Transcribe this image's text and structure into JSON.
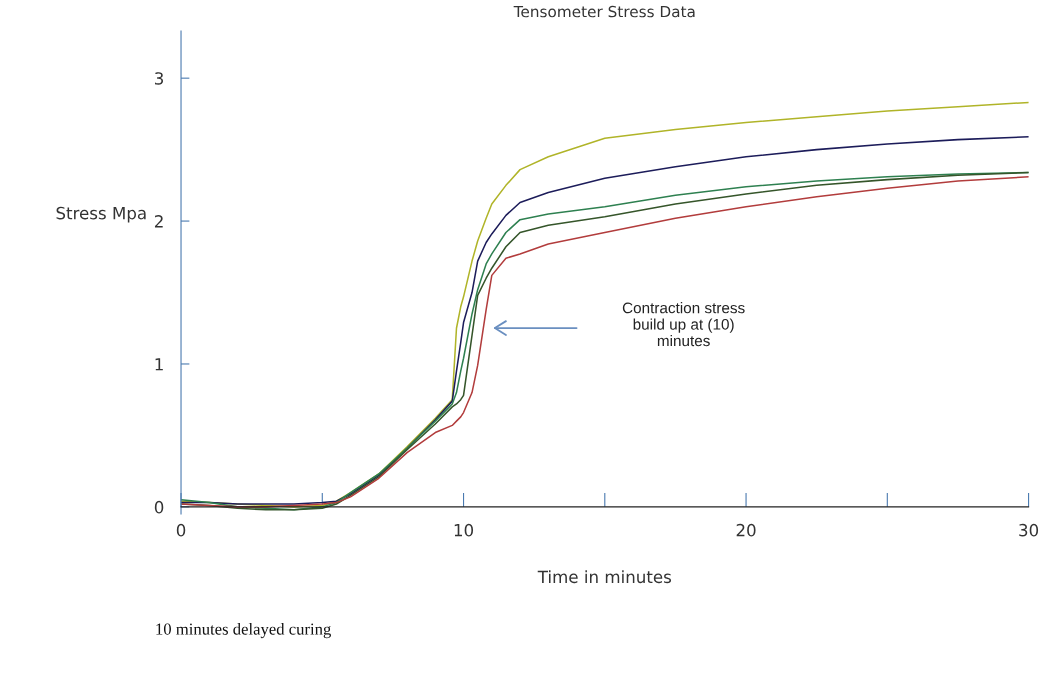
{
  "chart_data": {
    "type": "line",
    "title": "Tensometer Stress Data",
    "xlabel": "Time in minutes",
    "ylabel": "Stress Mpa",
    "x": [
      0,
      1,
      2,
      3,
      4,
      5,
      5.5,
      6,
      7,
      8,
      9,
      9.6,
      9.75,
      9.9,
      10,
      10.3,
      10.5,
      10.8,
      11,
      11.5,
      12,
      13,
      15,
      17.5,
      20,
      22.5,
      25,
      27.5,
      30
    ],
    "series": [
      {
        "color": "#b0b428",
        "values": [
          0.04,
          0.03,
          0.02,
          0.01,
          0.0,
          0.01,
          0.04,
          0.1,
          0.23,
          0.42,
          0.62,
          0.75,
          1.25,
          1.4,
          1.47,
          1.72,
          1.86,
          2.02,
          2.12,
          2.25,
          2.36,
          2.45,
          2.58,
          2.64,
          2.69,
          2.73,
          2.77,
          2.8,
          2.83
        ]
      },
      {
        "color": "#1c1c5a",
        "values": [
          0.03,
          0.03,
          0.02,
          0.02,
          0.02,
          0.03,
          0.04,
          0.09,
          0.22,
          0.41,
          0.61,
          0.74,
          0.95,
          1.15,
          1.29,
          1.5,
          1.72,
          1.85,
          1.91,
          2.04,
          2.13,
          2.2,
          2.3,
          2.38,
          2.45,
          2.5,
          2.54,
          2.57,
          2.59
        ]
      },
      {
        "color": "#2e8050",
        "values": [
          0.05,
          0.03,
          0.0,
          -0.01,
          -0.02,
          0.0,
          0.03,
          0.1,
          0.23,
          0.41,
          0.6,
          0.72,
          0.8,
          0.95,
          1.04,
          1.35,
          1.52,
          1.7,
          1.77,
          1.92,
          2.01,
          2.05,
          2.1,
          2.18,
          2.24,
          2.28,
          2.31,
          2.33,
          2.34
        ]
      },
      {
        "color": "#35552a",
        "values": [
          0.02,
          0.01,
          -0.01,
          -0.02,
          -0.02,
          -0.01,
          0.02,
          0.08,
          0.21,
          0.4,
          0.58,
          0.7,
          0.72,
          0.75,
          0.78,
          1.2,
          1.48,
          1.6,
          1.67,
          1.82,
          1.92,
          1.97,
          2.03,
          2.12,
          2.19,
          2.25,
          2.29,
          2.32,
          2.34
        ]
      },
      {
        "color": "#b23c3c",
        "values": [
          0.02,
          0.01,
          0.0,
          0.0,
          0.01,
          0.02,
          0.03,
          0.07,
          0.2,
          0.38,
          0.52,
          0.57,
          0.6,
          0.63,
          0.66,
          0.8,
          0.99,
          1.38,
          1.62,
          1.74,
          1.77,
          1.84,
          1.92,
          2.02,
          2.1,
          2.17,
          2.23,
          2.28,
          2.31
        ]
      }
    ],
    "xlim": [
      0,
      30
    ],
    "ylim": [
      -0.05,
      3.33
    ],
    "xticks": [
      0,
      {
        "value": 5,
        "label": null
      },
      10,
      {
        "value": 15,
        "label": null
      },
      20,
      {
        "value": 25,
        "label": null
      },
      30
    ],
    "yticks": [
      0,
      1,
      2,
      3
    ],
    "annotations": [
      "Contraction stress\nbuild up at (10)\nminutes",
      "10 minutes delayed curing"
    ],
    "grid": false,
    "marker": "none",
    "line_style": "solid"
  }
}
